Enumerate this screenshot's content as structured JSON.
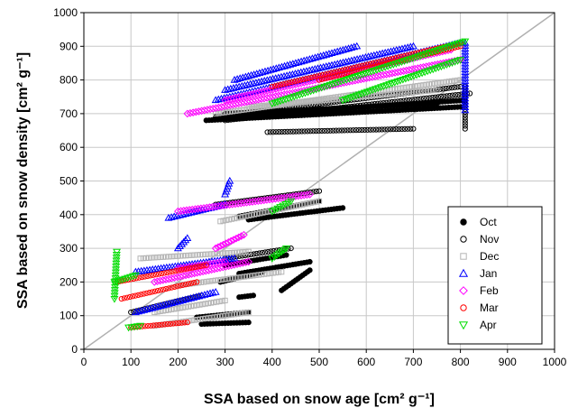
{
  "chart_data": {
    "type": "scatter",
    "title": "",
    "xlabel": "SSA based on snow age [cm² g⁻¹]",
    "ylabel": "SSA based on snow density [cm² g⁻¹]",
    "xlim": [
      0,
      1000
    ],
    "ylim": [
      0,
      1000
    ],
    "x_ticks": [
      0,
      100,
      200,
      300,
      400,
      500,
      600,
      700,
      800,
      900,
      1000
    ],
    "y_ticks": [
      0,
      100,
      200,
      300,
      400,
      500,
      600,
      700,
      800,
      900,
      1000
    ],
    "grid": true,
    "legend_position": "bottom-right",
    "reference_line": [
      [
        0,
        0
      ],
      [
        1000,
        1000
      ]
    ],
    "series": [
      {
        "name": "Oct",
        "marker": "filled-circle",
        "color": "#000000",
        "segments": [
          [
            [
              280,
              690
            ],
            [
              810,
              740
            ]
          ],
          [
            [
              260,
              680
            ],
            [
              800,
              720
            ]
          ],
          [
            [
              300,
              700
            ],
            [
              750,
              730
            ]
          ],
          [
            [
              350,
              385
            ],
            [
              550,
              420
            ]
          ],
          [
            [
              330,
              395
            ],
            [
              500,
              440
            ]
          ],
          [
            [
              300,
              250
            ],
            [
              430,
              280
            ]
          ],
          [
            [
              330,
              225
            ],
            [
              480,
              260
            ]
          ],
          [
            [
              420,
              175
            ],
            [
              480,
              235
            ]
          ],
          [
            [
              240,
              95
            ],
            [
              350,
              110
            ]
          ],
          [
            [
              250,
              75
            ],
            [
              350,
              80
            ]
          ],
          [
            [
              290,
              200
            ],
            [
              380,
              230
            ]
          ],
          [
            [
              330,
              155
            ],
            [
              360,
              160
            ]
          ]
        ]
      },
      {
        "name": "Nov",
        "marker": "open-circle",
        "color": "#000000",
        "segments": [
          [
            [
              390,
              645
            ],
            [
              700,
              655
            ]
          ],
          [
            [
              300,
              680
            ],
            [
              820,
              760
            ]
          ],
          [
            [
              330,
              700
            ],
            [
              800,
              780
            ]
          ],
          [
            [
              810,
              655
            ],
            [
              810,
              780
            ]
          ],
          [
            [
              280,
              430
            ],
            [
              500,
              470
            ]
          ],
          [
            [
              300,
              270
            ],
            [
              440,
              300
            ]
          ],
          [
            [
              100,
              110
            ],
            [
              250,
              160
            ]
          ]
        ]
      },
      {
        "name": "Dec",
        "marker": "open-square",
        "color": "#b5b5b5",
        "segments": [
          [
            [
              280,
              700
            ],
            [
              800,
              800
            ]
          ],
          [
            [
              350,
              720
            ],
            [
              750,
              770
            ]
          ],
          [
            [
              290,
              380
            ],
            [
              500,
              440
            ]
          ],
          [
            [
              120,
              270
            ],
            [
              350,
              290
            ]
          ],
          [
            [
              150,
              70
            ],
            [
              350,
              110
            ]
          ],
          [
            [
              150,
              110
            ],
            [
              300,
              145
            ]
          ],
          [
            [
              200,
              190
            ],
            [
              420,
              230
            ]
          ]
        ]
      },
      {
        "name": "Jan",
        "marker": "open-triangle-up",
        "color": "#0000ff",
        "segments": [
          [
            [
              280,
              740
            ],
            [
              800,
              910
            ]
          ],
          [
            [
              300,
              770
            ],
            [
              700,
              900
            ]
          ],
          [
            [
              320,
              800
            ],
            [
              580,
              900
            ]
          ],
          [
            [
              810,
              710
            ],
            [
              810,
              910
            ]
          ],
          [
            [
              110,
              110
            ],
            [
              280,
              170
            ]
          ],
          [
            [
              110,
              230
            ],
            [
              320,
              270
            ]
          ],
          [
            [
              180,
              390
            ],
            [
              300,
              430
            ]
          ],
          [
            [
              300,
              460
            ],
            [
              310,
              500
            ]
          ],
          [
            [
              200,
              300
            ],
            [
              220,
              330
            ]
          ]
        ]
      },
      {
        "name": "Feb",
        "marker": "open-diamond",
        "color": "#ff00ff",
        "segments": [
          [
            [
              220,
              700
            ],
            [
              800,
              860
            ]
          ],
          [
            [
              300,
              740
            ],
            [
              780,
              890
            ]
          ],
          [
            [
              200,
              410
            ],
            [
              480,
              460
            ]
          ],
          [
            [
              280,
              300
            ],
            [
              340,
              340
            ]
          ],
          [
            [
              150,
              200
            ],
            [
              350,
              260
            ]
          ],
          [
            [
              200,
              240
            ],
            [
              300,
              260
            ]
          ]
        ]
      },
      {
        "name": "Mar",
        "marker": "open-circle",
        "color": "#ff0000",
        "segments": [
          [
            [
              400,
              780
            ],
            [
              800,
              910
            ]
          ],
          [
            [
              500,
              800
            ],
            [
              800,
              900
            ]
          ],
          [
            [
              70,
              200
            ],
            [
              260,
              250
            ]
          ],
          [
            [
              80,
              150
            ],
            [
              240,
              200
            ]
          ],
          [
            [
              100,
              65
            ],
            [
              220,
              80
            ]
          ]
        ]
      },
      {
        "name": "Apr",
        "marker": "open-triangle-down",
        "color": "#00dd00",
        "segments": [
          [
            [
              400,
              730
            ],
            [
              810,
              915
            ]
          ],
          [
            [
              550,
              740
            ],
            [
              800,
              860
            ]
          ],
          [
            [
              400,
              410
            ],
            [
              440,
              440
            ]
          ],
          [
            [
              65,
              150
            ],
            [
              70,
              290
            ]
          ],
          [
            [
              65,
              200
            ],
            [
              110,
              220
            ]
          ],
          [
            [
              400,
              270
            ],
            [
              430,
              300
            ]
          ],
          [
            [
              95,
              65
            ],
            [
              120,
              70
            ]
          ]
        ]
      }
    ]
  }
}
